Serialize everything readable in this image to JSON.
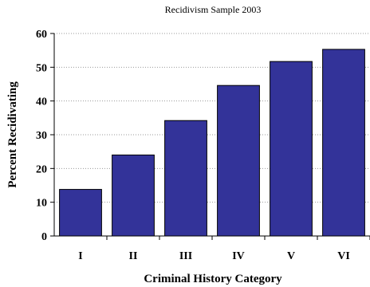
{
  "chart_data": {
    "type": "bar",
    "title": "Recidivism Sample 2003",
    "xlabel": "Criminal History Category",
    "ylabel": "Percent Recidivating",
    "categories": [
      "I",
      "II",
      "III",
      "IV",
      "V",
      "VI"
    ],
    "values": [
      13.8,
      24.0,
      34.2,
      44.6,
      51.7,
      55.3
    ],
    "ylim": [
      0,
      60
    ],
    "yticks": [
      "0",
      "10",
      "20",
      "30",
      "40",
      "50",
      "60"
    ],
    "grid": true,
    "legend": "none",
    "bar_color": "#333399"
  }
}
